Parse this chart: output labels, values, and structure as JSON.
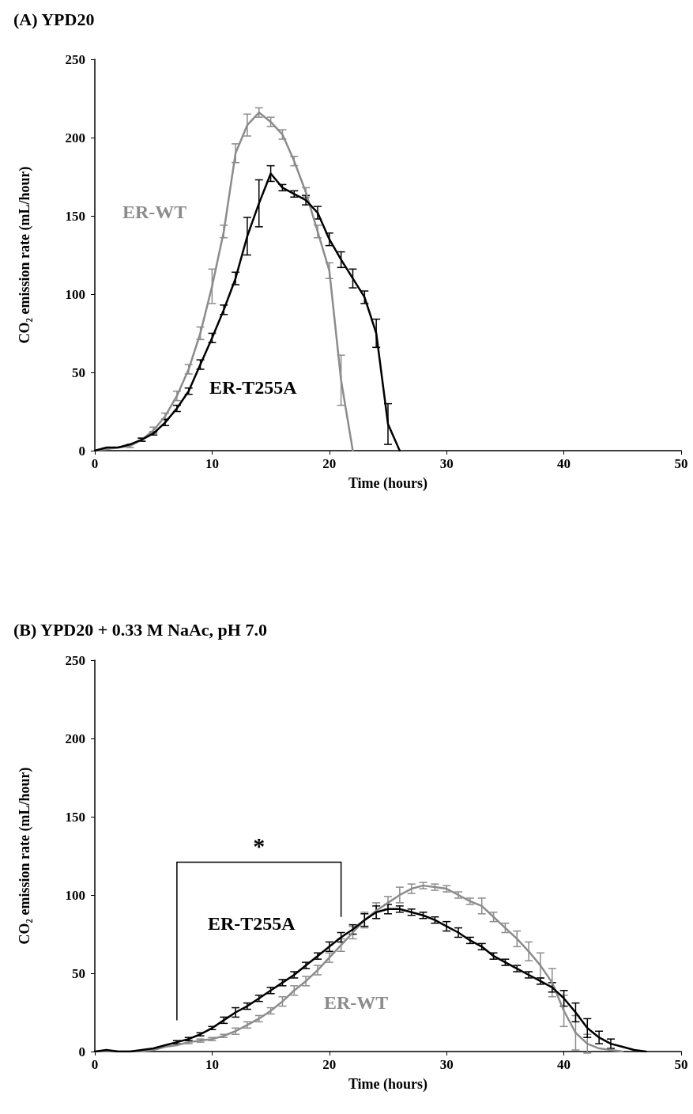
{
  "chart_data": [
    {
      "type": "line",
      "title": "(A) YPD20",
      "xlabel": "Time (hours)",
      "ylabel": "CO₂ emission rate (mL/hour)",
      "xlim": [
        0,
        50
      ],
      "xticks": [
        0,
        10,
        20,
        30,
        40,
        50
      ],
      "ylim": [
        0,
        250
      ],
      "yticks": [
        0,
        50,
        100,
        150,
        200,
        250
      ],
      "grid": false,
      "legend": false,
      "marker": "none",
      "line_style": "solid",
      "series": [
        {
          "name": "ER-WT",
          "color": "#8c8c8c",
          "x": [
            0,
            1,
            2,
            3,
            4,
            5,
            6,
            7,
            8,
            9,
            10,
            11,
            12,
            13,
            14,
            15,
            16,
            17,
            18,
            19,
            20,
            21,
            22
          ],
          "values": [
            0,
            1,
            2,
            3,
            7,
            13,
            22,
            35,
            52,
            75,
            105,
            140,
            190,
            208,
            216,
            210,
            202,
            185,
            165,
            140,
            115,
            45,
            0
          ],
          "errors": [
            0,
            0,
            0,
            1,
            1,
            2,
            2,
            3,
            3,
            4,
            11,
            4,
            6,
            7,
            3,
            3,
            3,
            3,
            3,
            4,
            5,
            16,
            0
          ]
        },
        {
          "name": "ER-T255A",
          "color": "#000000",
          "x": [
            0,
            1,
            2,
            3,
            4,
            5,
            6,
            7,
            8,
            9,
            10,
            11,
            12,
            13,
            14,
            15,
            16,
            17,
            18,
            19,
            20,
            21,
            22,
            23,
            24,
            25,
            26
          ],
          "values": [
            0,
            2,
            2,
            4,
            7,
            11,
            18,
            27,
            38,
            55,
            72,
            90,
            110,
            137,
            158,
            177,
            168,
            164,
            160,
            152,
            135,
            122,
            110,
            98,
            75,
            17,
            0
          ],
          "errors": [
            0,
            0,
            0,
            0,
            1,
            1,
            2,
            2,
            2,
            3,
            3,
            3,
            4,
            12,
            15,
            5,
            2,
            2,
            3,
            4,
            4,
            5,
            6,
            4,
            9,
            13,
            0
          ]
        }
      ]
    },
    {
      "type": "line",
      "title": "(B) YPD20 + 0.33 M NaAc, pH 7.0",
      "xlabel": "Time (hours)",
      "ylabel": "CO₂ emission rate (mL/hour)",
      "xlim": [
        0,
        50
      ],
      "xticks": [
        0,
        10,
        20,
        30,
        40,
        50
      ],
      "ylim": [
        0,
        250
      ],
      "yticks": [
        0,
        50,
        100,
        150,
        200,
        250
      ],
      "grid": false,
      "legend": false,
      "marker": "none",
      "line_style": "solid",
      "annotations": [
        "*"
      ],
      "series": [
        {
          "name": "ER-WT",
          "color": "#8c8c8c",
          "x": [
            0,
            1,
            2,
            3,
            4,
            5,
            6,
            7,
            8,
            9,
            10,
            11,
            12,
            13,
            14,
            15,
            16,
            17,
            18,
            19,
            20,
            21,
            22,
            23,
            24,
            25,
            26,
            27,
            28,
            29,
            30,
            31,
            32,
            33,
            34,
            35,
            36,
            37,
            38,
            39,
            40,
            41,
            42,
            43,
            44,
            45
          ],
          "values": [
            0,
            0,
            0,
            0,
            0,
            1,
            3,
            4,
            6,
            7,
            8,
            10,
            13,
            17,
            21,
            26,
            32,
            39,
            45,
            52,
            60,
            68,
            76,
            84,
            90,
            95,
            100,
            104,
            106,
            105,
            104,
            100,
            96,
            93,
            86,
            79,
            72,
            64,
            55,
            44,
            26,
            12,
            5,
            2,
            1,
            0
          ],
          "errors": [
            null,
            null,
            null,
            null,
            null,
            null,
            null,
            null,
            1,
            1,
            1,
            1,
            2,
            2,
            2,
            2,
            3,
            3,
            3,
            3,
            3,
            4,
            4,
            5,
            5,
            4,
            5,
            3,
            2,
            2,
            2,
            2,
            2,
            5,
            3,
            3,
            5,
            6,
            8,
            9,
            10,
            11,
            6,
            null,
            null,
            null
          ]
        },
        {
          "name": "ER-T255A",
          "color": "#000000",
          "x": [
            0,
            1,
            2,
            3,
            4,
            5,
            6,
            7,
            8,
            9,
            10,
            11,
            12,
            13,
            14,
            15,
            16,
            17,
            18,
            19,
            20,
            21,
            22,
            23,
            24,
            25,
            26,
            27,
            28,
            29,
            30,
            31,
            32,
            33,
            34,
            35,
            36,
            37,
            38,
            39,
            40,
            41,
            42,
            43,
            44,
            45,
            46,
            47
          ],
          "values": [
            0,
            1,
            0,
            0,
            1,
            2,
            4,
            6,
            8,
            11,
            15,
            20,
            25,
            29,
            34,
            39,
            44,
            49,
            55,
            61,
            67,
            73,
            78,
            84,
            89,
            91,
            91,
            89,
            87,
            84,
            80,
            76,
            71,
            67,
            61,
            57,
            53,
            49,
            45,
            41,
            34,
            25,
            15,
            9,
            5,
            3,
            1,
            0
          ],
          "errors": [
            null,
            null,
            null,
            null,
            null,
            null,
            null,
            1,
            1,
            1,
            1,
            2,
            3,
            2,
            2,
            2,
            2,
            2,
            2,
            2,
            3,
            3,
            3,
            4,
            4,
            3,
            2,
            2,
            2,
            2,
            3,
            3,
            2,
            2,
            2,
            2,
            2,
            2,
            2,
            3,
            5,
            6,
            6,
            4,
            3,
            null,
            null,
            null
          ]
        }
      ]
    }
  ]
}
